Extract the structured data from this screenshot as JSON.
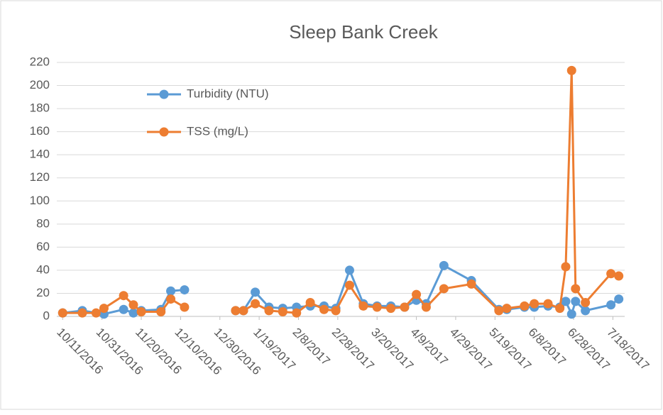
{
  "chart_data": {
    "type": "line",
    "title": "Sleep Bank Creek",
    "xlim": [
      "2016-10-08",
      "2017-07-24"
    ],
    "xticks": [
      {
        "value": "2016-10-11",
        "label": "10/11/2016"
      },
      {
        "value": "2016-10-31",
        "label": "10/31/2016"
      },
      {
        "value": "2016-11-20",
        "label": "11/20/2016"
      },
      {
        "value": "2016-12-10",
        "label": "12/10/2016"
      },
      {
        "value": "2016-12-30",
        "label": "12/30/2016"
      },
      {
        "value": "2017-01-19",
        "label": "1/19/2017"
      },
      {
        "value": "2017-02-08",
        "label": "2/8/2017"
      },
      {
        "value": "2017-02-28",
        "label": "2/28/2017"
      },
      {
        "value": "2017-03-20",
        "label": "3/20/2017"
      },
      {
        "value": "2017-04-09",
        "label": "4/9/2017"
      },
      {
        "value": "2017-04-29",
        "label": "4/29/2017"
      },
      {
        "value": "2017-05-19",
        "label": "5/19/2017"
      },
      {
        "value": "2017-06-08",
        "label": "6/8/2017"
      },
      {
        "value": "2017-06-28",
        "label": "6/28/2017"
      },
      {
        "value": "2017-07-18",
        "label": "7/18/2017"
      }
    ],
    "ylim": [
      0,
      220
    ],
    "yticks": [
      0,
      20,
      40,
      60,
      80,
      100,
      120,
      140,
      160,
      180,
      200,
      220
    ],
    "series": [
      {
        "name": "Turbidity (NTU)",
        "color": "#5b9bd5",
        "x": [
          "2016-10-11",
          "2016-10-21",
          "2016-11-01",
          "2016-11-11",
          "2016-11-16",
          "2016-11-20",
          "2016-11-30",
          "2016-12-05",
          "2016-12-12",
          null,
          "2017-01-07",
          "2017-01-11",
          "2017-01-17",
          "2017-01-24",
          "2017-01-31",
          "2017-02-07",
          "2017-02-14",
          "2017-02-21",
          "2017-02-27",
          "2017-03-06",
          "2017-03-13",
          "2017-03-20",
          "2017-03-27",
          "2017-04-03",
          "2017-04-09",
          "2017-04-14",
          "2017-04-23",
          "2017-05-07",
          "2017-05-21",
          "2017-05-25",
          "2017-06-03",
          "2017-06-08",
          "2017-06-15",
          "2017-06-21",
          "2017-06-24",
          "2017-06-27",
          "2017-06-29",
          "2017-07-04",
          "2017-07-17",
          "2017-07-21"
        ],
        "values": [
          3,
          5,
          2,
          6,
          3,
          5,
          6,
          22,
          23,
          null,
          5,
          5,
          21,
          8,
          7,
          8,
          9,
          9,
          7,
          40,
          11,
          9,
          9,
          8,
          14,
          11,
          44,
          31,
          6,
          6,
          8,
          8,
          9,
          8,
          13,
          2,
          13,
          5,
          10,
          15
        ]
      },
      {
        "name": "TSS (mg/L)",
        "color": "#ed7d31",
        "x": [
          "2016-10-11",
          "2016-10-21",
          "2016-10-28",
          "2016-11-01",
          "2016-11-11",
          "2016-11-16",
          "2016-11-20",
          "2016-11-30",
          "2016-12-05",
          "2016-12-12",
          null,
          "2017-01-07",
          "2017-01-11",
          "2017-01-17",
          "2017-01-24",
          "2017-01-31",
          "2017-02-07",
          "2017-02-14",
          "2017-02-21",
          "2017-02-27",
          "2017-03-06",
          "2017-03-13",
          "2017-03-20",
          "2017-03-27",
          "2017-04-03",
          "2017-04-09",
          "2017-04-14",
          "2017-04-23",
          "2017-05-07",
          "2017-05-21",
          "2017-05-25",
          "2017-06-03",
          "2017-06-08",
          "2017-06-15",
          "2017-06-21",
          "2017-06-24",
          "2017-06-27",
          "2017-06-29",
          "2017-07-04",
          "2017-07-17",
          "2017-07-21"
        ],
        "values": [
          3,
          3,
          3,
          7,
          18,
          10,
          4,
          4,
          15,
          8,
          null,
          5,
          5,
          11,
          5,
          4,
          3,
          12,
          6,
          5,
          27,
          9,
          8,
          7,
          8,
          19,
          8,
          24,
          28,
          5,
          7,
          9,
          11,
          11,
          7,
          43,
          213,
          24,
          12,
          37,
          35
        ]
      }
    ]
  }
}
